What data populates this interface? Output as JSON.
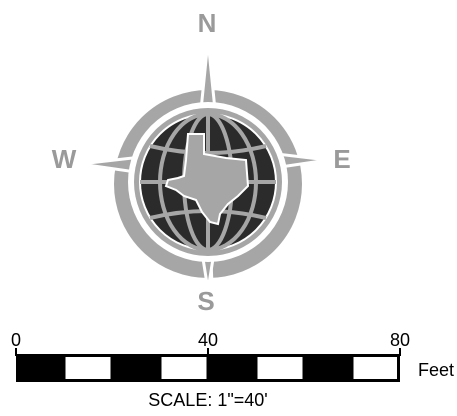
{
  "compass": {
    "north_label": "N",
    "east_label": "E",
    "south_label": "S",
    "west_label": "W",
    "emblem": "globe-with-texas-outline-icon"
  },
  "scale_bar": {
    "tick_labels": [
      "0",
      "40",
      "80"
    ],
    "unit_label": "Feet",
    "scale_text": "SCALE: 1\"=40'",
    "segments": 8,
    "segment_colors": [
      "#000000",
      "#ffffff"
    ]
  },
  "colors": {
    "compass_gray": "#a6a6a6",
    "globe_fill": "#2b2b2b",
    "outline": "#ffffff",
    "text_gray": "#9a9a9a",
    "text_black": "#000000"
  }
}
